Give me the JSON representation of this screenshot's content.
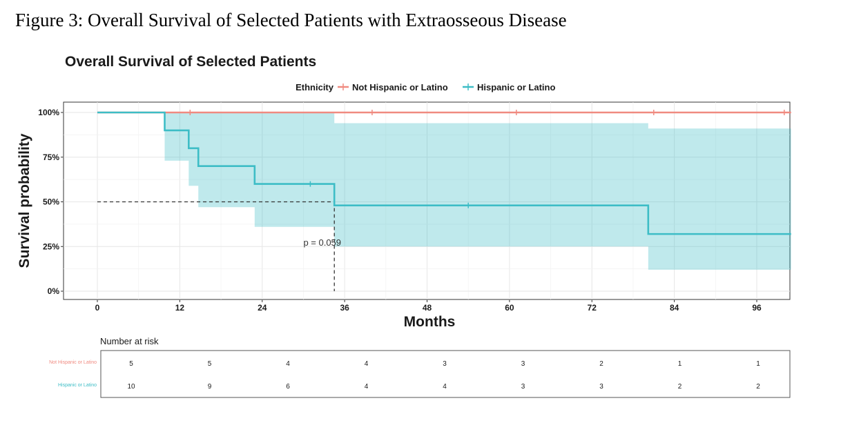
{
  "figure_caption": "Figure 3: Overall Survival of Selected Patients with Extraosseous Disease",
  "chart_data": {
    "type": "line",
    "subtype": "kaplan-meier",
    "title": "Overall Survival of Selected Patients",
    "xlabel": "Months",
    "ylabel": "Survival probability",
    "xlim": [
      0,
      101
    ],
    "ylim": [
      0,
      1
    ],
    "x_ticks": [
      0,
      12,
      24,
      36,
      48,
      60,
      72,
      84,
      96
    ],
    "y_ticks": [
      {
        "value": 0,
        "label": "0%"
      },
      {
        "value": 0.25,
        "label": "25%"
      },
      {
        "value": 0.5,
        "label": "50%"
      },
      {
        "value": 0.75,
        "label": "75%"
      },
      {
        "value": 1,
        "label": "100%"
      }
    ],
    "grid": true,
    "legend": {
      "title": "Ethnicity",
      "position": "top"
    },
    "series": [
      {
        "name": "Not Hispanic or Latino",
        "color": "#F08A80",
        "steps": [
          [
            0,
            1.0
          ],
          [
            101,
            1.0
          ]
        ],
        "censor_x": [
          13.5,
          40,
          61,
          81,
          100
        ]
      },
      {
        "name": "Hispanic or Latino",
        "color": "#3DBDC6",
        "steps": [
          [
            0,
            1.0
          ],
          [
            9.8,
            0.9
          ],
          [
            13.3,
            0.8
          ],
          [
            14.7,
            0.7
          ],
          [
            22.9,
            0.6
          ],
          [
            34.5,
            0.48
          ],
          [
            80.2,
            0.32
          ],
          [
            101,
            0.32
          ]
        ],
        "ci_steps": [
          [
            0,
            1.0,
            1.0
          ],
          [
            9.8,
            1.0,
            0.73
          ],
          [
            13.3,
            1.0,
            0.59
          ],
          [
            14.7,
            1.0,
            0.47
          ],
          [
            22.9,
            1.0,
            0.36
          ],
          [
            34.5,
            0.94,
            0.25
          ],
          [
            80.2,
            0.91,
            0.12
          ],
          [
            101,
            0.91,
            0.12
          ]
        ],
        "censor_x": [
          31,
          54
        ]
      }
    ],
    "median_survival": {
      "x": 34.5,
      "y": 0.5
    },
    "annotation": "p = 0.059",
    "annotation_x": 30,
    "annotation_y": 0.27,
    "risk_table": {
      "title": "Number at risk",
      "times": [
        0,
        12,
        24,
        36,
        48,
        60,
        72,
        84,
        96
      ],
      "rows": [
        {
          "name": "Not Hispanic or Latino",
          "color": "#F08A80",
          "values": [
            5,
            5,
            4,
            4,
            3,
            3,
            2,
            1,
            1
          ]
        },
        {
          "name": "Hispanic or Latino",
          "color": "#3DBDC6",
          "values": [
            10,
            9,
            6,
            4,
            4,
            3,
            3,
            2,
            2
          ]
        }
      ]
    }
  }
}
